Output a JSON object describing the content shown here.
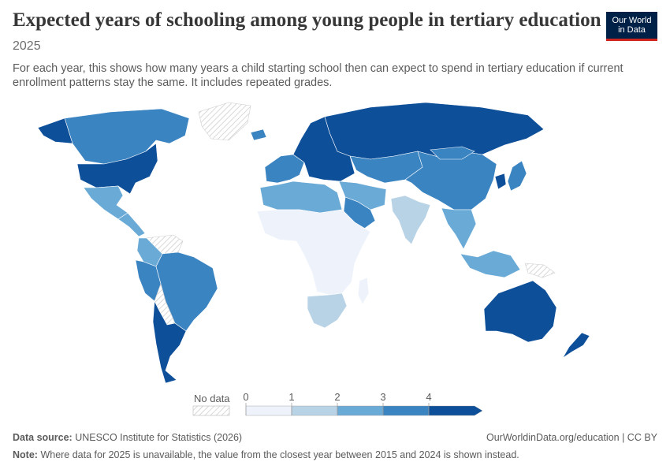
{
  "header": {
    "title": "Expected years of schooling among young people in tertiary education",
    "year": "2025",
    "description": "For each year, this shows how many years a child starting school then can expect to spend in tertiary education if current enrollment patterns stay the same. It includes repeated grades."
  },
  "logo": {
    "line1": "Our World",
    "line2": "in Data",
    "bg": "#002147",
    "accent": "#ce261e"
  },
  "legend": {
    "no_data_label": "No data",
    "ticks": [
      "0",
      "1",
      "2",
      "3",
      "4"
    ],
    "bins": [
      {
        "from": 0,
        "to": 1,
        "color": "#eef3fb"
      },
      {
        "from": 1,
        "to": 2,
        "color": "#b9d3e6"
      },
      {
        "from": 2,
        "to": 3,
        "color": "#6aaad6"
      },
      {
        "from": 3,
        "to": 4,
        "color": "#3b84c2"
      },
      {
        "from": 4,
        "to": null,
        "color": "#0e4f99"
      }
    ]
  },
  "map_regions": [
    {
      "name": "Canada",
      "level": 3
    },
    {
      "name": "Alaska",
      "level": 4
    },
    {
      "name": "United States",
      "level": 4
    },
    {
      "name": "Mexico",
      "level": 2
    },
    {
      "name": "Central America",
      "level": 2
    },
    {
      "name": "Venezuela",
      "level": null
    },
    {
      "name": "Colombia",
      "level": 2
    },
    {
      "name": "Peru / Ecuador",
      "level": 3
    },
    {
      "name": "Brazil",
      "level": 3
    },
    {
      "name": "Bolivia / Paraguay",
      "level": null
    },
    {
      "name": "Argentina / Chile",
      "level": 4
    },
    {
      "name": "Greenland",
      "level": null
    },
    {
      "name": "Iceland",
      "level": 3
    },
    {
      "name": "Western Europe",
      "level": 3
    },
    {
      "name": "Northern & Eastern Europe",
      "level": 4
    },
    {
      "name": "Russia",
      "level": 4
    },
    {
      "name": "Central Asia",
      "level": 3
    },
    {
      "name": "China",
      "level": 3
    },
    {
      "name": "Mongolia",
      "level": 3
    },
    {
      "name": "Korea",
      "level": 4
    },
    {
      "name": "Japan",
      "level": 3
    },
    {
      "name": "Middle East",
      "level": 2
    },
    {
      "name": "Saudi Arabia",
      "level": 3
    },
    {
      "name": "India",
      "level": 1
    },
    {
      "name": "Southeast Asia",
      "level": 2
    },
    {
      "name": "Indonesia",
      "level": 2
    },
    {
      "name": "Papua New Guinea",
      "level": null
    },
    {
      "name": "North Africa",
      "level": 2
    },
    {
      "name": "Sub-Saharan Africa",
      "level": 0
    },
    {
      "name": "Southern Africa",
      "level": 1
    },
    {
      "name": "Madagascar",
      "level": 0
    },
    {
      "name": "Australia",
      "level": 4
    },
    {
      "name": "New Zealand",
      "level": 4
    }
  ],
  "footer": {
    "source_label": "Data source:",
    "source_text": "UNESCO Institute for Statistics (2026)",
    "url_text": "OurWorldinData.org/education | CC BY",
    "note_label": "Note:",
    "note_text": "Where data for 2025 is unavailable, the value from the closest year between 2015 and 2024 is shown instead."
  }
}
